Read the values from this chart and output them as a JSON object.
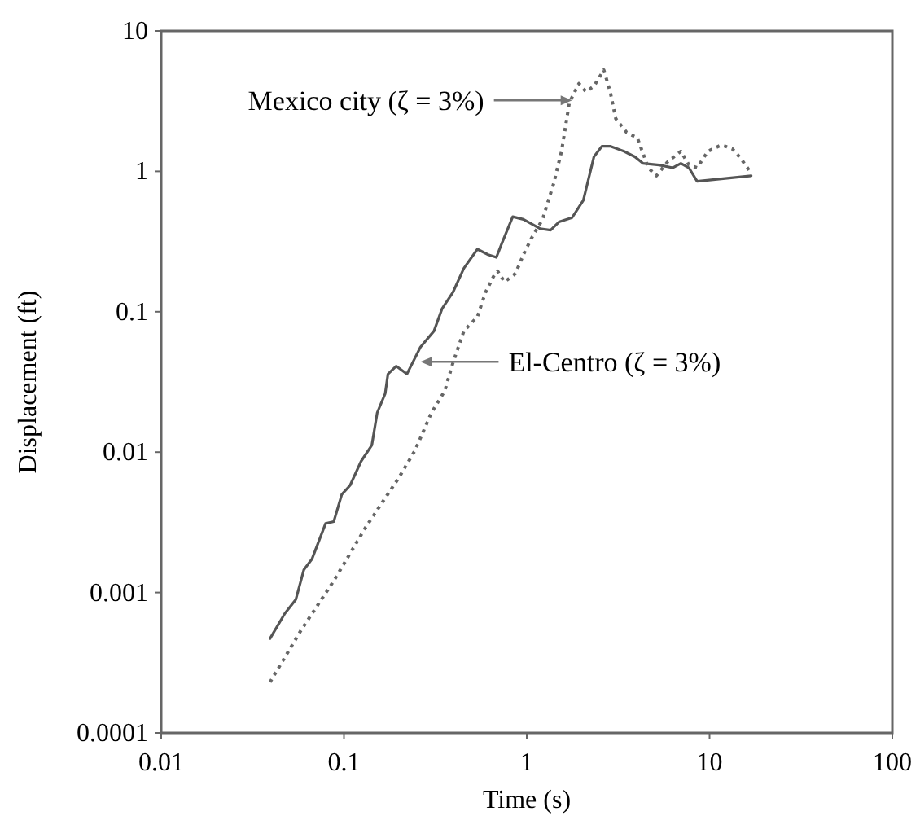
{
  "chart_data": {
    "type": "line",
    "xlabel": "Time (s)",
    "ylabel": "Displacement (ft)",
    "log": "xy",
    "grid": false,
    "xlim": [
      0.01,
      100
    ],
    "xticks": [
      0.01,
      0.1,
      1,
      10,
      100
    ],
    "ylim": [
      0.0001,
      10
    ],
    "yticks": [
      0.0001,
      0.001,
      0.01,
      0.1,
      1,
      10
    ],
    "series": [
      {
        "color": "#555555",
        "line_style": "solid",
        "x": [
          0.0394,
          0.0475,
          0.0545,
          0.0603,
          0.0668,
          0.0793,
          0.0879,
          0.0973,
          0.108,
          0.124,
          0.142,
          0.152,
          0.168,
          0.174,
          0.193,
          0.221,
          0.262,
          0.311,
          0.344,
          0.394,
          0.453,
          0.537,
          0.615,
          0.682,
          0.729,
          0.838,
          0.959,
          1.18,
          1.35,
          1.5,
          1.77,
          2.04,
          2.33,
          2.58,
          2.86,
          3.4,
          3.9,
          4.32,
          5.3,
          6.28,
          6.97,
          7.71,
          8.55,
          16.9
        ],
        "values": [
          0.00047,
          0.00071,
          0.00089,
          0.00145,
          0.00173,
          0.0031,
          0.0032,
          0.005,
          0.0058,
          0.0086,
          0.0112,
          0.0191,
          0.0261,
          0.036,
          0.041,
          0.036,
          0.056,
          0.073,
          0.105,
          0.137,
          0.204,
          0.279,
          0.255,
          0.244,
          0.305,
          0.475,
          0.455,
          0.391,
          0.381,
          0.436,
          0.468,
          0.622,
          1.27,
          1.51,
          1.51,
          1.39,
          1.27,
          1.14,
          1.11,
          1.06,
          1.14,
          1.06,
          0.85,
          0.93
        ]
      },
      {
        "color": "#666666",
        "line_style": "dotted",
        "x": [
          0.0394,
          0.0583,
          0.0879,
          0.132,
          0.2,
          0.245,
          0.301,
          0.356,
          0.394,
          0.453,
          0.537,
          0.594,
          0.659,
          0.692,
          0.756,
          0.867,
          0.959,
          1.06,
          1.22,
          1.4,
          1.55,
          1.71,
          1.93,
          2.11,
          2.33,
          2.64,
          2.86,
          3.07,
          3.52,
          4.03,
          4.62,
          5.12,
          5.87,
          6.97,
          7.71,
          8.55,
          9.8,
          11.6,
          13.3,
          14.8,
          16.9
        ],
        "values": [
          0.00023,
          0.00054,
          0.00121,
          0.00294,
          0.0066,
          0.0103,
          0.0191,
          0.0273,
          0.043,
          0.073,
          0.092,
          0.137,
          0.179,
          0.195,
          0.163,
          0.187,
          0.255,
          0.333,
          0.455,
          0.81,
          1.39,
          3.09,
          4.22,
          3.69,
          4.04,
          5.27,
          3.69,
          2.37,
          1.89,
          1.73,
          1.06,
          0.93,
          1.16,
          1.39,
          1.11,
          1.06,
          1.39,
          1.54,
          1.45,
          1.24,
          0.97
        ]
      }
    ],
    "annotations": [
      {
        "text": "Mexico city (ζ = 3%)",
        "x": 1.77,
        "y": 3.2
      },
      {
        "text": "El-Centro (ζ = 3%)",
        "x": 0.262,
        "y": 0.044
      }
    ]
  }
}
